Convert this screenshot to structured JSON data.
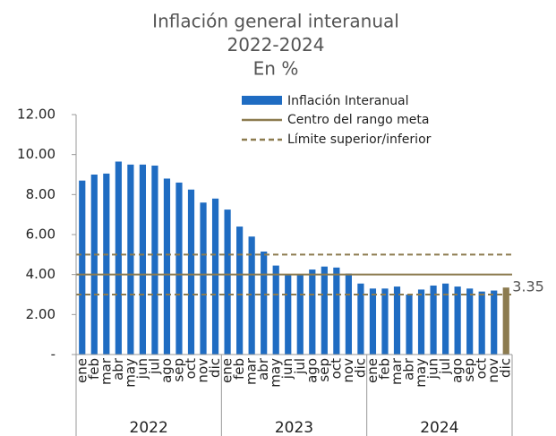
{
  "chart_data": {
    "type": "bar",
    "title": [
      "Inflación general interanual",
      "2022-2024",
      "En %"
    ],
    "categories": [
      "ene",
      "feb",
      "mar",
      "abr",
      "may",
      "jun",
      "jul",
      "ago",
      "sep",
      "oct",
      "nov",
      "dic",
      "ene",
      "feb",
      "mar",
      "abr",
      "may",
      "jun",
      "jul",
      "ago",
      "sep",
      "oct",
      "nov",
      "dic",
      "ene",
      "feb",
      "mar",
      "abr",
      "may",
      "jun",
      "jul",
      "ago",
      "sep",
      "oct",
      "nov",
      "dic"
    ],
    "years": [
      "2022",
      "2023",
      "2024"
    ],
    "series": [
      {
        "name": "Inflación Interanual",
        "color": "#1f6cc2",
        "values": [
          8.7,
          9.0,
          9.05,
          9.65,
          9.5,
          9.5,
          9.45,
          8.8,
          8.6,
          8.25,
          7.6,
          7.8,
          7.25,
          6.4,
          5.9,
          5.15,
          4.45,
          4.0,
          4.0,
          4.25,
          4.4,
          4.35,
          4.05,
          3.55,
          3.3,
          3.3,
          3.4,
          3.0,
          3.25,
          3.45,
          3.55,
          3.4,
          3.3,
          3.15,
          3.2,
          3.35
        ]
      }
    ],
    "highlight": {
      "index": 35,
      "color": "#8c7b4f"
    },
    "reference_lines": [
      {
        "name": "Centro del rango meta",
        "color": "#8c7b4f",
        "style": "solid",
        "values": [
          4
        ]
      },
      {
        "name": "Límite superior/inferior",
        "color": "#8c7b4f",
        "style": "dashed",
        "values": [
          5,
          3
        ]
      }
    ],
    "ylim": [
      0,
      12
    ],
    "yticks": [
      {
        "value": 0,
        "label": "-"
      },
      {
        "value": 2,
        "label": "2.00"
      },
      {
        "value": 4,
        "label": "4.00"
      },
      {
        "value": 6,
        "label": "6.00"
      },
      {
        "value": 8,
        "label": "8.00"
      },
      {
        "value": 10,
        "label": "10.00"
      },
      {
        "value": 12,
        "label": "12.00"
      }
    ]
  }
}
